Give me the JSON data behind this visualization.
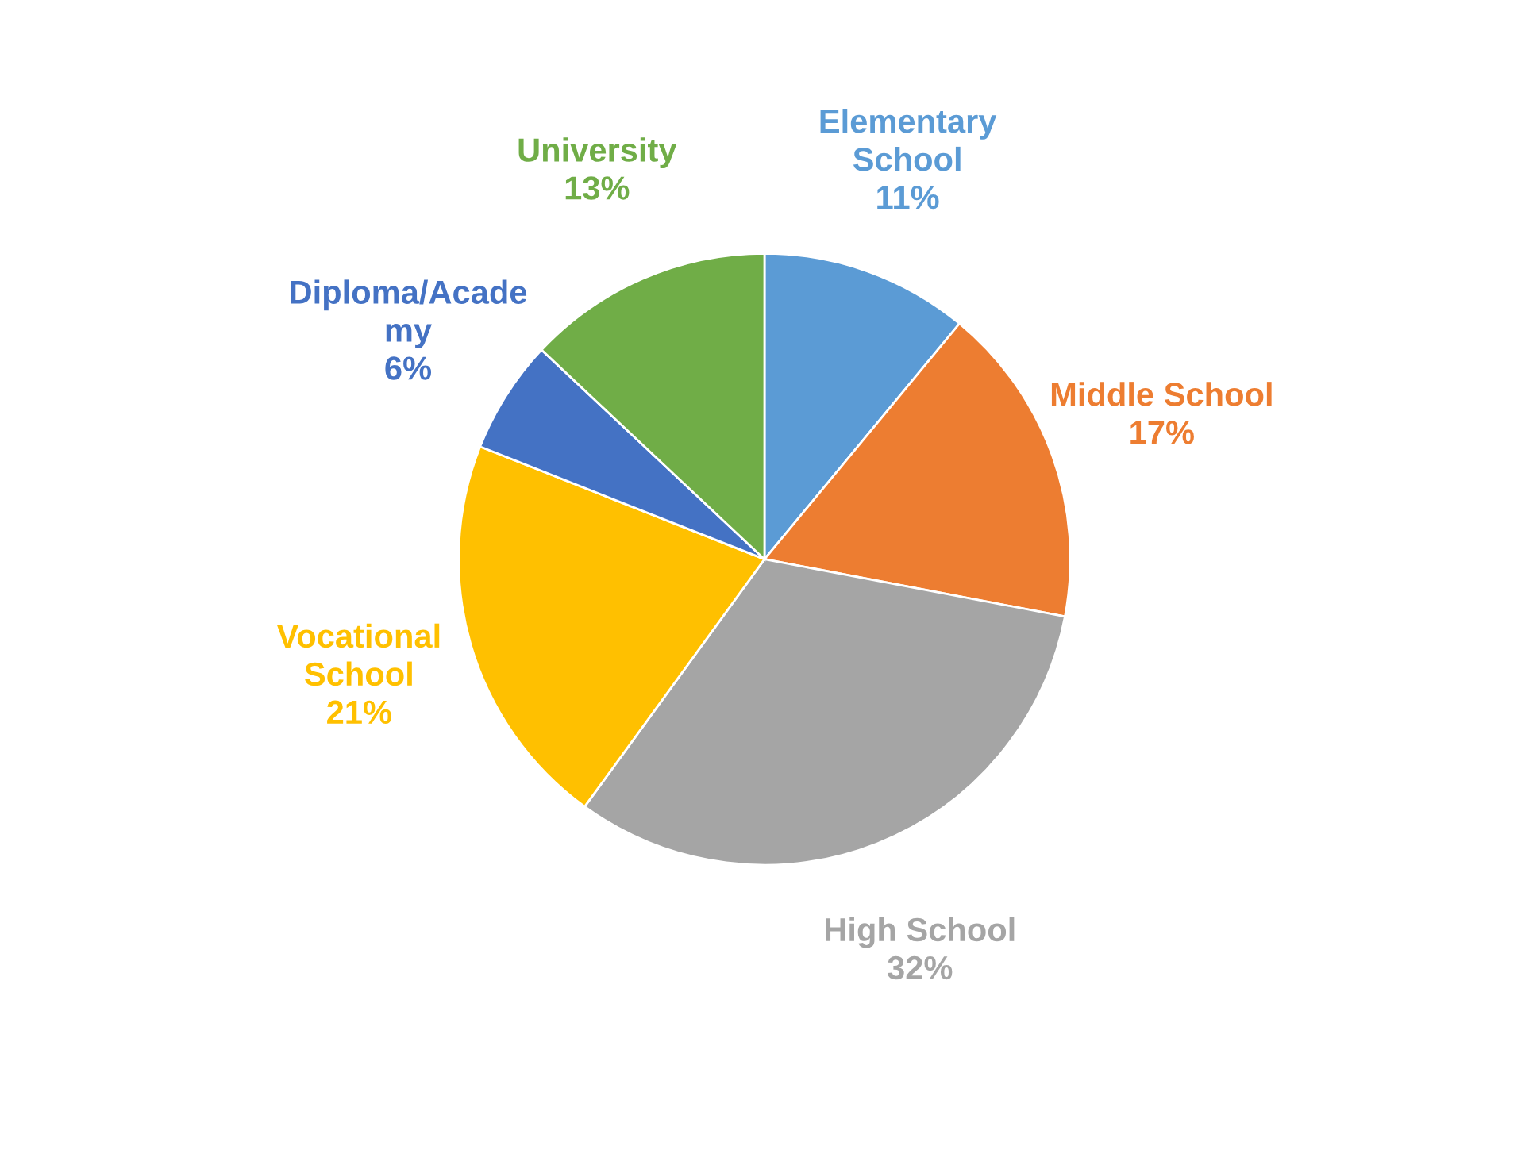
{
  "chart_data": {
    "type": "pie",
    "categories": [
      "Elementary\nSchool",
      "Middle School",
      "High School",
      "Vocational\nSchool",
      "Diploma/Acade\nmy",
      "University"
    ],
    "values": [
      11,
      17,
      32,
      21,
      6,
      13
    ],
    "value_labels": [
      "11%",
      "17%",
      "32%",
      "21%",
      "6%",
      "13%"
    ],
    "colors": [
      "#5b9bd5",
      "#ed7d31",
      "#a5a5a5",
      "#ffc000",
      "#4472c4",
      "#70ad47"
    ],
    "legend": false
  }
}
